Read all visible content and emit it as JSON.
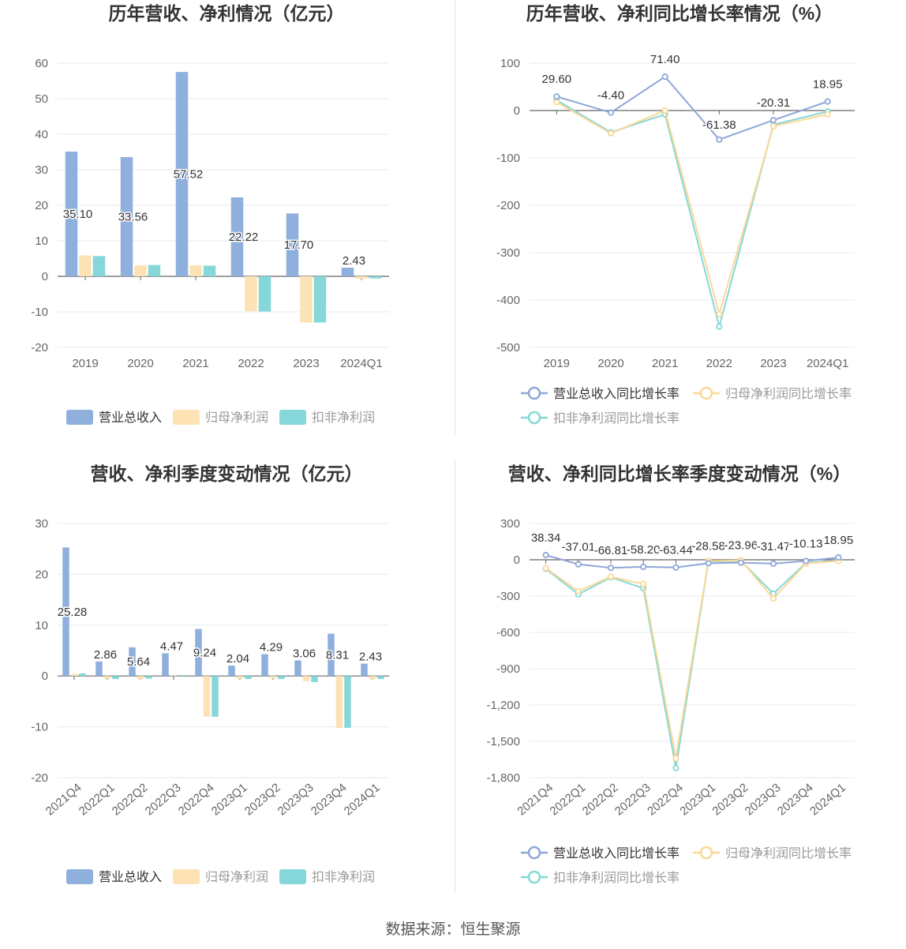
{
  "source": "数据来源：恒生聚源",
  "colors": {
    "revenue": "#8fb0dd",
    "net_profit": "#fde2b6",
    "deducted_profit": "#86d7d9",
    "rev_line": "#8fa6d8",
    "np_line": "#fcd796",
    "dp_line": "#82d9d6"
  },
  "chart_data": [
    {
      "id": "annual_bar",
      "type": "bar",
      "title": "历年营收、净利情况（亿元）",
      "categories": [
        "2019",
        "2020",
        "2021",
        "2022",
        "2023",
        "2024Q1"
      ],
      "ylim": [
        -20,
        60
      ],
      "yticks": [
        60,
        50,
        40,
        30,
        20,
        10,
        0,
        -10,
        -20
      ],
      "grid": true,
      "legend_position": "bottom",
      "series": [
        {
          "name": "营业总收入",
          "values": [
            35.1,
            33.56,
            57.52,
            22.22,
            17.7,
            2.43
          ],
          "labels": [
            "35.10",
            "33.56",
            "57.52",
            "22.22",
            "17.70",
            "2.43"
          ]
        },
        {
          "name": "归母净利润",
          "values": [
            5.9,
            3.1,
            3.1,
            -9.8,
            -13.0,
            -0.7
          ]
        },
        {
          "name": "扣非净利润",
          "values": [
            5.7,
            3.2,
            3.0,
            -9.9,
            -13.0,
            -0.6
          ]
        }
      ]
    },
    {
      "id": "annual_line",
      "type": "line",
      "title": "历年营收、净利同比增长率情况（%）",
      "categories": [
        "2019",
        "2020",
        "2021",
        "2022",
        "2023",
        "2024Q1"
      ],
      "ylim": [
        -500,
        100
      ],
      "yticks": [
        100,
        0,
        -100,
        -200,
        -300,
        -400,
        -500
      ],
      "grid": true,
      "legend_position": "bottom",
      "series": [
        {
          "name": "营业总收入同比增长率",
          "values": [
            29.6,
            -4.4,
            71.4,
            -61.38,
            -20.31,
            18.95
          ],
          "labels": [
            "29.60",
            "-4.40",
            "71.40",
            "-61.38",
            "-20.31",
            "18.95"
          ]
        },
        {
          "name": "归母净利润同比增长率",
          "values": [
            18,
            -48,
            0,
            -430,
            -33,
            -8
          ]
        },
        {
          "name": "扣非净利润同比增长率",
          "values": [
            22,
            -46,
            -8,
            -456,
            -30,
            -2
          ]
        }
      ]
    },
    {
      "id": "quarter_bar",
      "type": "bar",
      "title": "营收、净利季度变动情况（亿元）",
      "categories": [
        "2021Q4",
        "2022Q1",
        "2022Q2",
        "2022Q3",
        "2022Q4",
        "2023Q1",
        "2023Q2",
        "2023Q3",
        "2023Q4",
        "2024Q1"
      ],
      "ylim": [
        -20,
        30
      ],
      "yticks": [
        30,
        20,
        10,
        0,
        -10,
        -20
      ],
      "grid": true,
      "legend_position": "bottom",
      "series": [
        {
          "name": "营业总收入",
          "values": [
            25.28,
            2.86,
            5.64,
            4.47,
            9.24,
            2.04,
            4.29,
            3.06,
            8.31,
            2.43
          ],
          "labels": [
            "25.28",
            "2.86",
            "5.64",
            "4.47",
            "9.24",
            "2.04",
            "4.29",
            "3.06",
            "8.31",
            "2.43"
          ]
        },
        {
          "name": "归母净利润",
          "values": [
            0.4,
            -0.5,
            -0.6,
            0.2,
            -8.0,
            -0.5,
            -0.5,
            -1.0,
            -10.2,
            -0.6
          ]
        },
        {
          "name": "扣非净利润",
          "values": [
            0.5,
            -0.6,
            -0.5,
            0.2,
            -8.0,
            -0.6,
            -0.6,
            -1.2,
            -10.2,
            -0.6
          ]
        }
      ]
    },
    {
      "id": "quarter_line",
      "type": "line",
      "title": "营收、净利同比增长率季度变动情况（%）",
      "categories": [
        "2021Q4",
        "2022Q1",
        "2022Q2",
        "2022Q3",
        "2022Q4",
        "2023Q1",
        "2023Q2",
        "2023Q3",
        "2023Q4",
        "2024Q1"
      ],
      "ylim": [
        -1800,
        300
      ],
      "yticks": [
        300,
        0,
        -300,
        -600,
        -900,
        -1200,
        -1500,
        -1800
      ],
      "ytick_labels": [
        "300",
        "0",
        "-300",
        "-600",
        "-900",
        "-1,200",
        "-1,500",
        "-1,800"
      ],
      "grid": true,
      "legend_position": "bottom",
      "series": [
        {
          "name": "营业总收入同比增长率",
          "values": [
            38.34,
            -37.01,
            -66.81,
            -58.2,
            -63.44,
            -28.58,
            -23.96,
            -31.47,
            -10.13,
            18.95
          ],
          "labels": [
            "38.34",
            "-37.01",
            "-66.81",
            "-58.20",
            "-63.44",
            "-28.58",
            "-23.96",
            "-31.47",
            "-10.13",
            "18.95"
          ]
        },
        {
          "name": "归母净利润同比增长率",
          "values": [
            -70,
            -260,
            -140,
            -200,
            -1640,
            -10,
            -5,
            -320,
            -30,
            -10
          ]
        },
        {
          "name": "扣非净利润同比增长率",
          "values": [
            -75,
            -285,
            -145,
            -235,
            -1720,
            -15,
            -10,
            -280,
            -25,
            -5
          ]
        }
      ]
    }
  ]
}
